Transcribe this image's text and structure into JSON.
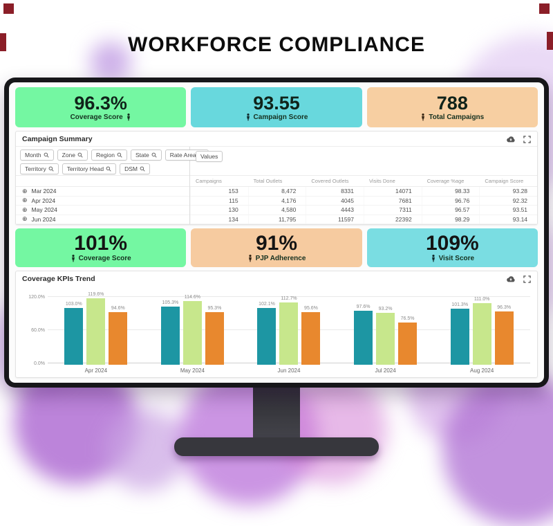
{
  "page_title": "WORKFORCE COMPLIANCE",
  "colors": {
    "card_green": "#74f7a2",
    "card_teal": "#68d8dd",
    "card_peach": "#f7cfa2",
    "bar_teal": "#1d96a3",
    "bar_green": "#c7e78c",
    "bar_orange": "#e8882e"
  },
  "kpi_top": [
    {
      "value": "96.3%",
      "label": "Coverage Score"
    },
    {
      "value": "93.55",
      "label": "Campaign Score"
    },
    {
      "value": "788",
      "label": "Total Campaigns"
    }
  ],
  "campaign_summary": {
    "title": "Campaign Summary",
    "filters_row1": [
      "Month",
      "Zone",
      "Region",
      "State",
      "Rate Area"
    ],
    "filters_row2": [
      "Territory",
      "Territory Head",
      "DSM"
    ],
    "values_chip": "Values",
    "table": {
      "columns": [
        "Campaigns",
        "Total Outlets",
        "Covered Outlets",
        "Visits Done",
        "Coverage %age",
        "Campaign Score"
      ],
      "rows": [
        {
          "label": "Mar 2024",
          "values": [
            "153",
            "8,472",
            "8331",
            "14071",
            "98.33",
            "93.28"
          ]
        },
        {
          "label": "Apr 2024",
          "values": [
            "115",
            "4,176",
            "4045",
            "7681",
            "96.76",
            "92.32"
          ]
        },
        {
          "label": "May 2024",
          "values": [
            "130",
            "4,580",
            "4443",
            "7311",
            "96.57",
            "93.51"
          ]
        },
        {
          "label": "Jun 2024",
          "values": [
            "134",
            "11,795",
            "11597",
            "22392",
            "98.29",
            "93.14"
          ]
        }
      ]
    }
  },
  "kpi_mid": [
    {
      "value": "101%",
      "label": "Coverage Score"
    },
    {
      "value": "91%",
      "label": "PJP Adherence"
    },
    {
      "value": "109%",
      "label": "Visit Score"
    }
  ],
  "trend": {
    "title": "Coverage KPIs Trend",
    "chart_data": {
      "type": "bar",
      "title": "Coverage KPIs Trend",
      "categories": [
        "Apr 2024",
        "May 2024",
        "Jun 2024",
        "Jul 2024",
        "Aug 2024"
      ],
      "series": [
        {
          "name": "teal",
          "color": "#1d96a3",
          "values": [
            103.0,
            105.3,
            102.1,
            97.6,
            101.3
          ],
          "labels": [
            "103.0%",
            "105.3%",
            "102.1%",
            "97.6%",
            "101.3%"
          ]
        },
        {
          "name": "light-green",
          "color": "#c7e78c",
          "values": [
            119.6,
            114.6,
            112.7,
            93.2,
            111.0
          ],
          "labels": [
            "119.6%",
            "114.6%",
            "112.7%",
            "93.2%",
            "111.0%"
          ]
        },
        {
          "name": "orange",
          "color": "#e8882e",
          "values": [
            94.6,
            95.3,
            95.6,
            76.5,
            96.3
          ],
          "labels": [
            "94.6%",
            "95.3%",
            "95.6%",
            "76.5%",
            "96.3%"
          ]
        }
      ],
      "y_ticks": [
        "0.0%",
        "60.0%",
        "120.0%"
      ],
      "ylim": [
        0,
        130
      ],
      "grid": true,
      "legend_position": "none"
    }
  }
}
